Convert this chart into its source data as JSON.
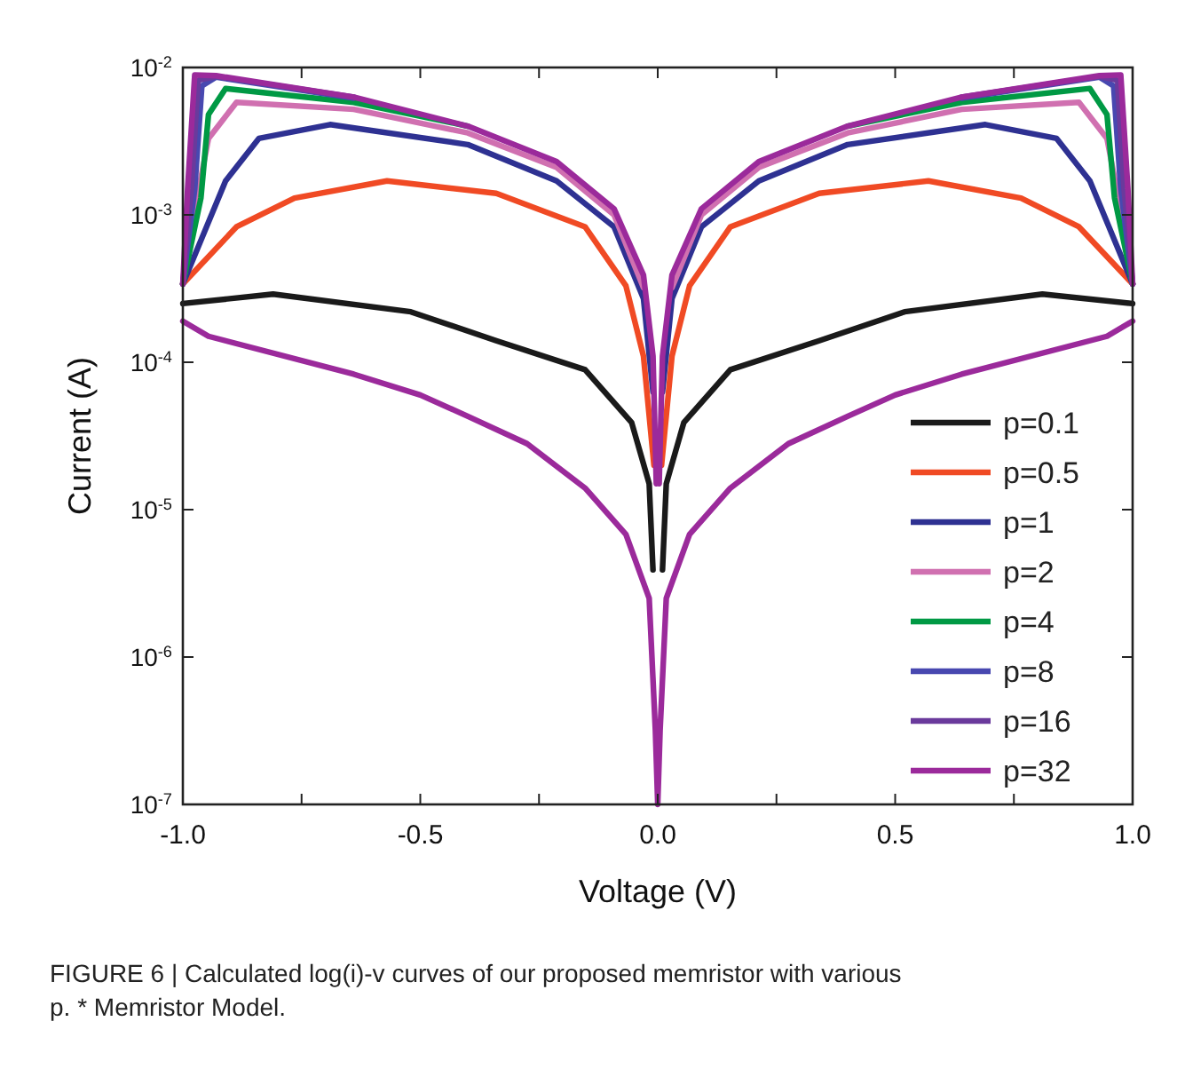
{
  "chart_data": {
    "type": "line",
    "xlabel": "Voltage (V)",
    "ylabel": "Current (A)",
    "log": "y",
    "xlim": [
      -1,
      1
    ],
    "ylim": [
      1e-07,
      0.01
    ],
    "xticks": [
      {
        "value": -1,
        "label": "-1.0"
      },
      {
        "value": -0.75,
        "label": null
      },
      {
        "value": -0.5,
        "label": "-0.5"
      },
      {
        "value": -0.25,
        "label": null
      },
      {
        "value": 0,
        "label": "0.0"
      },
      {
        "value": 0.25,
        "label": null
      },
      {
        "value": 0.5,
        "label": "0.5"
      },
      {
        "value": 0.75,
        "label": null
      },
      {
        "value": 1,
        "label": "1.0"
      }
    ],
    "yticks": [
      {
        "value": 1e-07,
        "label": "10$^{-7}$"
      },
      {
        "value": 1e-06,
        "label": "10$^{-6}$"
      },
      {
        "value": 1e-05,
        "label": "10$^{-5}$"
      },
      {
        "value": 0.0001,
        "label": "10$^{-4}$"
      },
      {
        "value": 0.001,
        "label": "10$^{-3}$"
      },
      {
        "value": 0.01,
        "label": "10$^{-2}$"
      }
    ],
    "grid": false,
    "legend": "bottom right",
    "marker": "none",
    "line_style": "solid",
    "annotations": [
      "FIGURE 6 | Calculated log(i)-v curves of our proposed memristor with various p. * Memristor Model."
    ],
    "series": [
      {
        "name": "p=0.1",
        "color": "#1a1a1a",
        "x": [
          1,
          0.81,
          0.52,
          0.34,
          0.153,
          0.055,
          0.018,
          0.01,
          0,
          -1,
          -0.81,
          -0.52,
          -0.34,
          -0.153,
          -0.055,
          -0.018,
          -0.01
        ],
        "values": [
          0.00025,
          0.00029,
          0.00022,
          0.00014,
          8.9e-05,
          3.9e-05,
          1.5e-05,
          3.9e-06,
          null,
          0.00025,
          0.00029,
          0.00022,
          0.00014,
          8.9e-05,
          3.9e-05,
          1.5e-05,
          3.9e-06
        ]
      },
      {
        "name": "p=0.5",
        "color": "#f04a24",
        "x": [
          1,
          0.887,
          0.765,
          0.57,
          0.34,
          0.153,
          0.067,
          0.03,
          0.008,
          0,
          -1,
          -0.887,
          -0.765,
          -0.57,
          -0.34,
          -0.153,
          -0.067,
          -0.03,
          -0.008
        ],
        "values": [
          0.00034,
          0.00083,
          0.0013,
          0.0017,
          0.0014,
          0.00083,
          0.00033,
          0.00011,
          2e-05,
          null,
          0.00034,
          0.00083,
          0.0013,
          0.0017,
          0.0014,
          0.00083,
          0.00033,
          0.00011,
          2e-05
        ]
      },
      {
        "name": "p=1",
        "color": "#2e3192",
        "x": [
          1,
          0.91,
          0.84,
          0.69,
          0.4,
          0.213,
          0.092,
          0.03,
          0.01,
          0,
          -1,
          -0.91,
          -0.84,
          -0.69,
          -0.4,
          -0.213,
          -0.092,
          -0.03,
          -0.01
        ],
        "values": [
          0.00034,
          0.0017,
          0.0033,
          0.0041,
          0.003,
          0.0017,
          0.00083,
          0.00027,
          6.3e-05,
          null,
          0.00034,
          0.0017,
          0.0033,
          0.0041,
          0.003,
          0.0017,
          0.00083,
          0.00027,
          6.3e-05
        ]
      },
      {
        "name": "p=2",
        "color": "#d070b0",
        "x": [
          1,
          0.97,
          0.946,
          0.887,
          0.64,
          0.4,
          0.213,
          0.092,
          0.03,
          0,
          -1,
          -0.97,
          -0.946,
          -0.887,
          -0.64,
          -0.4,
          -0.213,
          -0.092,
          -0.03
        ],
        "values": [
          0.00034,
          0.0013,
          0.0033,
          0.0058,
          0.0052,
          0.0036,
          0.0021,
          0.001,
          0.00032,
          null,
          0.00034,
          0.0013,
          0.0033,
          0.0058,
          0.0052,
          0.0036,
          0.0021,
          0.001,
          0.00032
        ]
      },
      {
        "name": "p=4",
        "color": "#009944",
        "x": [
          1,
          0.962,
          0.946,
          0.91,
          0.64,
          0.4,
          0,
          -1,
          -0.962,
          -0.946,
          -0.91,
          -0.64,
          -0.4
        ],
        "values": [
          0.00034,
          0.0013,
          0.0048,
          0.0072,
          0.0058,
          0.004,
          null,
          0.00034,
          0.0013,
          0.0048,
          0.0072,
          0.0058,
          0.004
        ]
      },
      {
        "name": "p=8",
        "color": "#4848b0",
        "x": [
          1,
          0.975,
          0.96,
          0.93,
          0.64,
          0,
          -1,
          -0.975,
          -0.96,
          -0.93,
          -0.64
        ],
        "values": [
          0.00034,
          0.0015,
          0.0075,
          0.0086,
          0.0062,
          null,
          0.00034,
          0.0015,
          0.0075,
          0.0086,
          0.0062
        ]
      },
      {
        "name": "p=16",
        "color": "#6a3a9c",
        "x": [
          1,
          0.982,
          0.968,
          0.93,
          0.64,
          0,
          -1,
          -0.982,
          -0.968,
          -0.93,
          -0.64
        ],
        "values": [
          0.00034,
          0.0015,
          0.0082,
          0.0087,
          0.0063,
          null,
          0.00034,
          0.0015,
          0.0082,
          0.0087,
          0.0063
        ]
      },
      {
        "name": "p=32",
        "color": "#9b2a9b",
        "x": [
          1,
          0.99,
          0.975,
          0.93,
          0.64,
          0.4,
          0.213,
          0.092,
          0.03,
          0.01,
          0.003,
          0,
          -1,
          -0.99,
          -0.975,
          -0.93,
          -0.64,
          -0.4,
          -0.213,
          -0.092,
          -0.03,
          -0.01,
          -0.003
        ],
        "values": [
          0.00034,
          0.0015,
          0.0089,
          0.0088,
          0.0063,
          0.004,
          0.0023,
          0.0011,
          0.00039,
          0.00011,
          1.5e-05,
          null,
          0.00034,
          0.0015,
          0.0089,
          0.0088,
          0.0063,
          0.004,
          0.0023,
          0.0011,
          0.00039,
          0.00011,
          1.5e-05
        ]
      },
      {
        "color": "#9b2a9b",
        "x": [
          -1,
          -0.946,
          -0.64,
          -0.5,
          -0.4,
          -0.275,
          -0.153,
          -0.067,
          -0.018,
          -0.005,
          0,
          0.005,
          0.018,
          0.067,
          0.153,
          0.275,
          0.4,
          0.5,
          0.64,
          0.946,
          1
        ],
        "values": [
          0.00019,
          0.00015,
          8.3e-05,
          6e-05,
          4.3e-05,
          2.8e-05,
          1.4e-05,
          6.8e-06,
          2.5e-06,
          3.2e-07,
          1e-07,
          3.2e-07,
          2.5e-06,
          6.8e-06,
          1.4e-05,
          2.8e-05,
          4.3e-05,
          6e-05,
          8.3e-05,
          0.00015,
          0.00019
        ]
      }
    ]
  }
}
